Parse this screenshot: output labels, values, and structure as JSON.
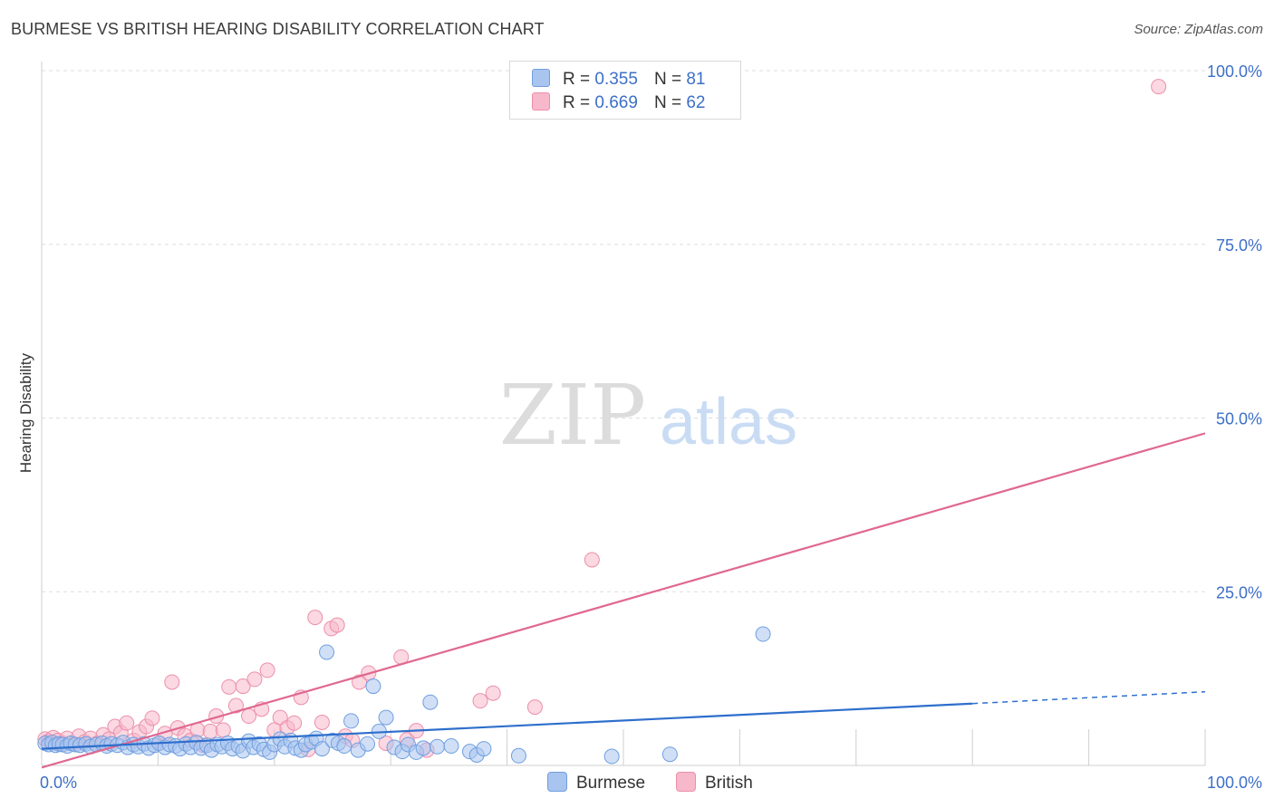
{
  "title": "BURMESE VS BRITISH HEARING DISABILITY CORRELATION CHART",
  "source": "Source: ZipAtlas.com",
  "watermark": {
    "zip": "ZIP",
    "atlas": "atlas"
  },
  "legend_top": [
    {
      "r_label": "R =",
      "r_value": "0.355",
      "n_label": "N =",
      "n_value": "81"
    },
    {
      "r_label": "R =",
      "r_value": "0.669",
      "n_label": "N =",
      "n_value": "62"
    }
  ],
  "legend_bottom": [
    {
      "label": "Burmese"
    },
    {
      "label": "British"
    }
  ],
  "colors": {
    "burmese_fill": "#a9c4ee",
    "burmese_stroke": "#6f9fe0",
    "burmese_line": "#2e6fcc",
    "british_fill": "#f7b8cb",
    "british_stroke": "#ec8fab",
    "british_line": "#e06890",
    "tick_label": "#3d6fc8",
    "grid": "#dddddd"
  },
  "chart_data": {
    "type": "scatter",
    "title": "BURMESE VS BRITISH HEARING DISABILITY CORRELATION CHART",
    "xlabel": "",
    "ylabel": "Hearing Disability",
    "xlim": [
      0,
      100
    ],
    "ylim": [
      0,
      100
    ],
    "x_tick_labels": [
      {
        "value": 0,
        "label": "0.0%"
      },
      {
        "value": 100,
        "label": "100.0%"
      }
    ],
    "y_tick_labels": [
      {
        "value": 25,
        "label": "25.0%"
      },
      {
        "value": 50,
        "label": "50.0%"
      },
      {
        "value": 75,
        "label": "75.0%"
      },
      {
        "value": 100,
        "label": "100.0%"
      }
    ],
    "grid": true,
    "legend_position": "top-center",
    "series": [
      {
        "name": "Burmese",
        "R": 0.355,
        "N": 81,
        "trend": {
          "x0": 0,
          "y0": 2.4,
          "x1": 80,
          "y1": 8.9,
          "dashed_to_x": 100,
          "dashed_to_y": 10.6
        },
        "points": [
          [
            0.3,
            3.2
          ],
          [
            0.6,
            3.0
          ],
          [
            0.9,
            3.3
          ],
          [
            1.2,
            2.9
          ],
          [
            1.5,
            3.1
          ],
          [
            1.8,
            3.0
          ],
          [
            2.2,
            2.8
          ],
          [
            2.5,
            3.2
          ],
          [
            2.9,
            3.0
          ],
          [
            3.3,
            2.9
          ],
          [
            3.8,
            3.1
          ],
          [
            4.2,
            2.7
          ],
          [
            4.7,
            3.0
          ],
          [
            5.2,
            3.2
          ],
          [
            5.6,
            2.8
          ],
          [
            6.0,
            3.1
          ],
          [
            6.5,
            2.9
          ],
          [
            7.0,
            3.3
          ],
          [
            7.4,
            2.6
          ],
          [
            7.9,
            3.0
          ],
          [
            8.3,
            2.7
          ],
          [
            8.8,
            3.1
          ],
          [
            9.2,
            2.5
          ],
          [
            9.7,
            2.9
          ],
          [
            10.1,
            3.2
          ],
          [
            10.6,
            2.6
          ],
          [
            11.0,
            3.0
          ],
          [
            11.5,
            2.8
          ],
          [
            11.9,
            2.4
          ],
          [
            12.4,
            3.1
          ],
          [
            12.8,
            2.6
          ],
          [
            13.3,
            3.3
          ],
          [
            13.7,
            2.5
          ],
          [
            14.2,
            2.9
          ],
          [
            14.6,
            2.2
          ],
          [
            15.1,
            3.0
          ],
          [
            15.5,
            2.7
          ],
          [
            16.0,
            3.2
          ],
          [
            16.4,
            2.4
          ],
          [
            16.9,
            2.8
          ],
          [
            17.3,
            2.1
          ],
          [
            17.8,
            3.5
          ],
          [
            18.2,
            2.6
          ],
          [
            18.7,
            3.1
          ],
          [
            19.1,
            2.3
          ],
          [
            19.6,
            1.9
          ],
          [
            20.0,
            3.0
          ],
          [
            20.5,
            3.8
          ],
          [
            20.9,
            2.7
          ],
          [
            21.4,
            3.6
          ],
          [
            21.8,
            2.5
          ],
          [
            22.3,
            2.2
          ],
          [
            22.7,
            3.0
          ],
          [
            23.2,
            3.4
          ],
          [
            23.6,
            3.9
          ],
          [
            24.1,
            2.4
          ],
          [
            24.5,
            16.3
          ],
          [
            25.0,
            3.6
          ],
          [
            25.5,
            3.2
          ],
          [
            26.0,
            2.8
          ],
          [
            26.6,
            6.4
          ],
          [
            27.2,
            2.2
          ],
          [
            28.0,
            3.1
          ],
          [
            28.5,
            11.4
          ],
          [
            29.0,
            4.9
          ],
          [
            29.6,
            6.9
          ],
          [
            30.3,
            2.6
          ],
          [
            31.0,
            2.0
          ],
          [
            31.5,
            3.0
          ],
          [
            32.2,
            1.9
          ],
          [
            32.8,
            2.5
          ],
          [
            33.4,
            9.1
          ],
          [
            34.0,
            2.7
          ],
          [
            35.2,
            2.8
          ],
          [
            36.8,
            2.0
          ],
          [
            37.4,
            1.5
          ],
          [
            38.0,
            2.4
          ],
          [
            41.0,
            1.4
          ],
          [
            49.0,
            1.3
          ],
          [
            54.0,
            1.6
          ],
          [
            62.0,
            18.9
          ]
        ]
      },
      {
        "name": "British",
        "R": 0.669,
        "N": 62,
        "trend": {
          "x0": 0,
          "y0": -0.3,
          "x1": 100,
          "y1": 47.8
        },
        "points": [
          [
            0.3,
            3.8
          ],
          [
            0.6,
            3.5
          ],
          [
            1.0,
            4.0
          ],
          [
            1.4,
            3.6
          ],
          [
            1.8,
            3.2
          ],
          [
            2.2,
            3.9
          ],
          [
            2.7,
            3.1
          ],
          [
            3.2,
            4.2
          ],
          [
            3.7,
            3.4
          ],
          [
            4.2,
            3.9
          ],
          [
            4.8,
            3.2
          ],
          [
            5.3,
            4.4
          ],
          [
            5.8,
            3.8
          ],
          [
            6.3,
            5.6
          ],
          [
            6.8,
            4.7
          ],
          [
            7.3,
            6.1
          ],
          [
            7.9,
            3.6
          ],
          [
            8.4,
            4.8
          ],
          [
            9.0,
            5.6
          ],
          [
            9.5,
            6.8
          ],
          [
            10.1,
            3.2
          ],
          [
            10.6,
            4.6
          ],
          [
            11.2,
            12.0
          ],
          [
            11.7,
            5.4
          ],
          [
            12.3,
            4.3
          ],
          [
            12.8,
            3.6
          ],
          [
            13.4,
            5.1
          ],
          [
            13.9,
            2.9
          ],
          [
            14.5,
            4.9
          ],
          [
            15.0,
            7.1
          ],
          [
            15.6,
            5.1
          ],
          [
            16.1,
            11.3
          ],
          [
            16.7,
            8.6
          ],
          [
            17.3,
            11.4
          ],
          [
            17.8,
            7.1
          ],
          [
            18.3,
            12.4
          ],
          [
            18.9,
            8.1
          ],
          [
            19.4,
            13.7
          ],
          [
            20.0,
            5.1
          ],
          [
            20.5,
            6.9
          ],
          [
            21.1,
            5.4
          ],
          [
            21.7,
            6.1
          ],
          [
            22.3,
            9.8
          ],
          [
            22.9,
            2.3
          ],
          [
            23.5,
            21.3
          ],
          [
            24.1,
            6.2
          ],
          [
            24.9,
            19.7
          ],
          [
            25.4,
            20.2
          ],
          [
            26.1,
            4.2
          ],
          [
            26.7,
            3.6
          ],
          [
            27.3,
            12.0
          ],
          [
            28.1,
            13.3
          ],
          [
            29.6,
            3.2
          ],
          [
            30.9,
            15.6
          ],
          [
            31.4,
            3.7
          ],
          [
            32.2,
            5.0
          ],
          [
            33.1,
            2.2
          ],
          [
            37.7,
            9.3
          ],
          [
            38.8,
            10.4
          ],
          [
            42.4,
            8.4
          ],
          [
            47.3,
            29.6
          ],
          [
            96.0,
            97.7
          ]
        ]
      }
    ]
  }
}
